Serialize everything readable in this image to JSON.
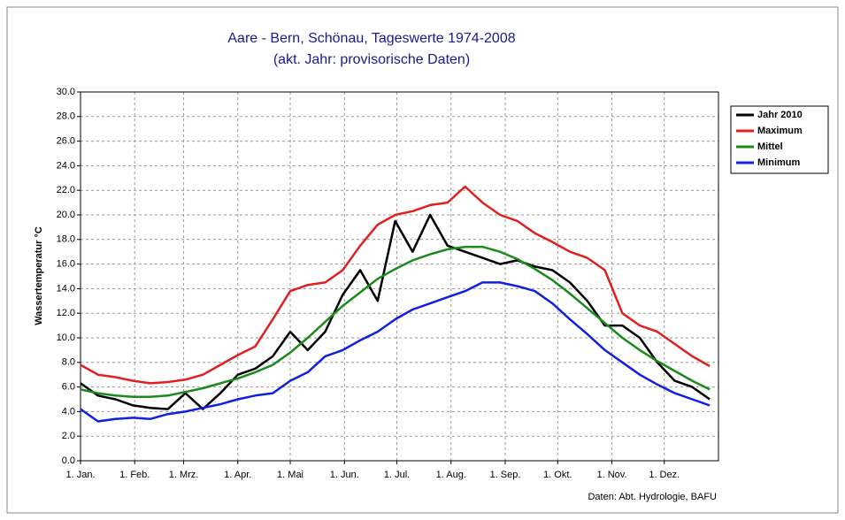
{
  "chart_data": {
    "type": "line",
    "title": "Aare - Bern, Schönau, Tageswerte 1974-2008",
    "subtitle": "(akt. Jahr: provisorische Daten)",
    "y_label": "Wassertemperatur °C",
    "source": "Daten: Abt. Hydrologie, BAFU",
    "x": [
      1,
      11,
      21,
      31,
      41,
      51,
      61,
      71,
      81,
      91,
      101,
      111,
      121,
      131,
      141,
      151,
      161,
      171,
      181,
      191,
      201,
      211,
      221,
      231,
      241,
      251,
      261,
      271,
      281,
      291,
      301,
      311,
      321,
      331,
      341,
      351,
      361
    ],
    "xlim": [
      1,
      366
    ],
    "xticks": [
      {
        "value": 1,
        "label": "1. Jan."
      },
      {
        "value": 32,
        "label": "1. Feb."
      },
      {
        "value": 60,
        "label": "1. Mrz."
      },
      {
        "value": 91,
        "label": "1. Apr."
      },
      {
        "value": 121,
        "label": "1. Mai"
      },
      {
        "value": 152,
        "label": "1. Jun."
      },
      {
        "value": 182,
        "label": "1. Jul."
      },
      {
        "value": 213,
        "label": "1. Aug."
      },
      {
        "value": 244,
        "label": "1. Sep."
      },
      {
        "value": 274,
        "label": "1. Okt."
      },
      {
        "value": 305,
        "label": "1. Nov."
      },
      {
        "value": 335,
        "label": "1. Dez."
      }
    ],
    "ylim": [
      0,
      30
    ],
    "yticks": [
      {
        "value": 0,
        "label": "0.0"
      },
      {
        "value": 2,
        "label": "2.0"
      },
      {
        "value": 4,
        "label": "4.0"
      },
      {
        "value": 6,
        "label": "6.0"
      },
      {
        "value": 8,
        "label": "8.0"
      },
      {
        "value": 10,
        "label": "10.0"
      },
      {
        "value": 12,
        "label": "12.0"
      },
      {
        "value": 14,
        "label": "14.0"
      },
      {
        "value": 16,
        "label": "16.0"
      },
      {
        "value": 18,
        "label": "18.0"
      },
      {
        "value": 20,
        "label": "20.0"
      },
      {
        "value": 22,
        "label": "22.0"
      },
      {
        "value": 24,
        "label": "24.0"
      },
      {
        "value": 26,
        "label": "26.0"
      },
      {
        "value": 28,
        "label": "28.0"
      },
      {
        "value": 30,
        "label": "30.0"
      }
    ],
    "grid": true,
    "series": [
      {
        "name": "Jahr 2010",
        "color": "#000000",
        "values": [
          6.3,
          5.3,
          5.0,
          4.5,
          4.3,
          4.2,
          5.5,
          4.2,
          5.5,
          7.0,
          7.5,
          8.5,
          10.5,
          9.0,
          10.5,
          13.5,
          15.5,
          13.0,
          19.5,
          17.0,
          20.0,
          17.5,
          17.0,
          16.5,
          16.0,
          16.3,
          15.8,
          15.5,
          14.5,
          13.0,
          11.0,
          11.0,
          10.0,
          8.0,
          6.5,
          6.0,
          5.0
        ]
      },
      {
        "name": "Maximum",
        "color": "#e02020",
        "values": [
          7.8,
          7.0,
          6.8,
          6.5,
          6.3,
          6.4,
          6.6,
          7.0,
          7.8,
          8.6,
          9.3,
          11.5,
          13.8,
          14.3,
          14.5,
          15.5,
          17.5,
          19.2,
          20.0,
          20.3,
          20.8,
          21.0,
          22.3,
          21.0,
          20.0,
          19.5,
          18.5,
          17.8,
          17.0,
          16.5,
          15.5,
          12.0,
          11.0,
          10.5,
          9.5,
          8.5,
          7.7
        ]
      },
      {
        "name": "Mittel",
        "color": "#1a8a1a",
        "values": [
          5.8,
          5.5,
          5.3,
          5.2,
          5.2,
          5.3,
          5.6,
          5.9,
          6.3,
          6.7,
          7.2,
          7.8,
          8.8,
          10.0,
          11.3,
          12.6,
          13.7,
          14.8,
          15.6,
          16.3,
          16.8,
          17.2,
          17.4,
          17.4,
          17.0,
          16.4,
          15.6,
          14.7,
          13.6,
          12.4,
          11.2,
          10.0,
          9.0,
          8.1,
          7.3,
          6.5,
          5.8
        ]
      },
      {
        "name": "Minimum",
        "color": "#1020e0",
        "values": [
          4.2,
          3.2,
          3.4,
          3.5,
          3.4,
          3.8,
          4.0,
          4.3,
          4.6,
          5.0,
          5.3,
          5.5,
          6.5,
          7.2,
          8.5,
          9.0,
          9.8,
          10.5,
          11.5,
          12.3,
          12.8,
          13.3,
          13.8,
          14.5,
          14.5,
          14.2,
          13.8,
          12.8,
          11.5,
          10.3,
          9.0,
          8.0,
          7.0,
          6.2,
          5.5,
          5.0,
          4.5
        ]
      }
    ]
  }
}
